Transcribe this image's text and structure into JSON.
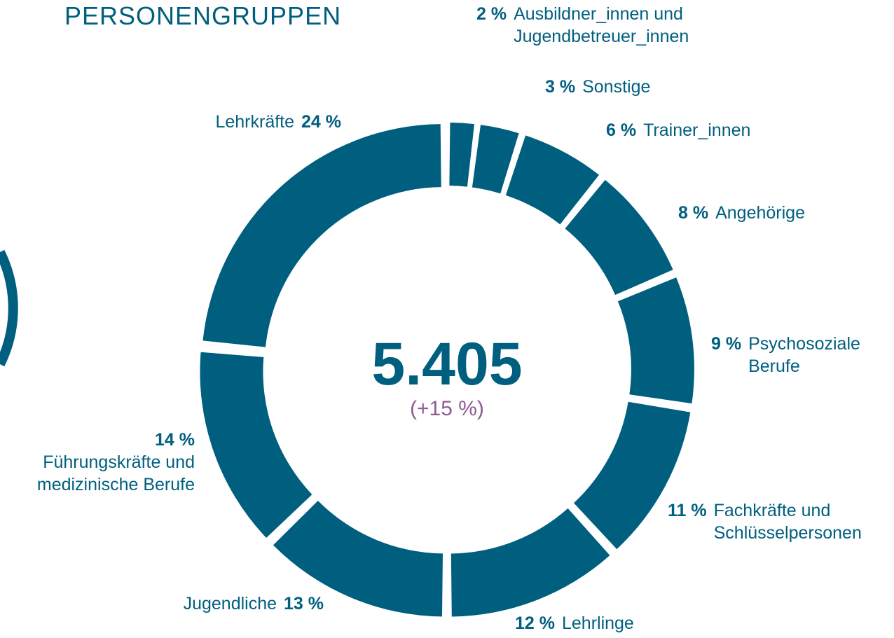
{
  "chart_data": {
    "type": "donut",
    "title": "PERSONENGRUPPEN",
    "center_value": "5.405",
    "center_change": "(+15 %)",
    "categories": [
      "Ausbildner_innen und Jugendbetreuer_innen",
      "Sonstige",
      "Trainer_innen",
      "Angehörige",
      "Psychosoziale Berufe",
      "Fachkräfte und Schlüsselpersonen",
      "Lehrlinge",
      "Jugendliche",
      "Führungskräfte und medizinische Berufe",
      "Lehrkräfte"
    ],
    "values": [
      2,
      3,
      6,
      8,
      9,
      11,
      12,
      13,
      14,
      24
    ],
    "value_labels": [
      "2 %",
      "3 %",
      "6 %",
      "8 %",
      "9 %",
      "11 %",
      "12 %",
      "13 %",
      "14 %",
      "24 %"
    ],
    "color": "#005f7f",
    "change_color": "#8e5b93"
  }
}
